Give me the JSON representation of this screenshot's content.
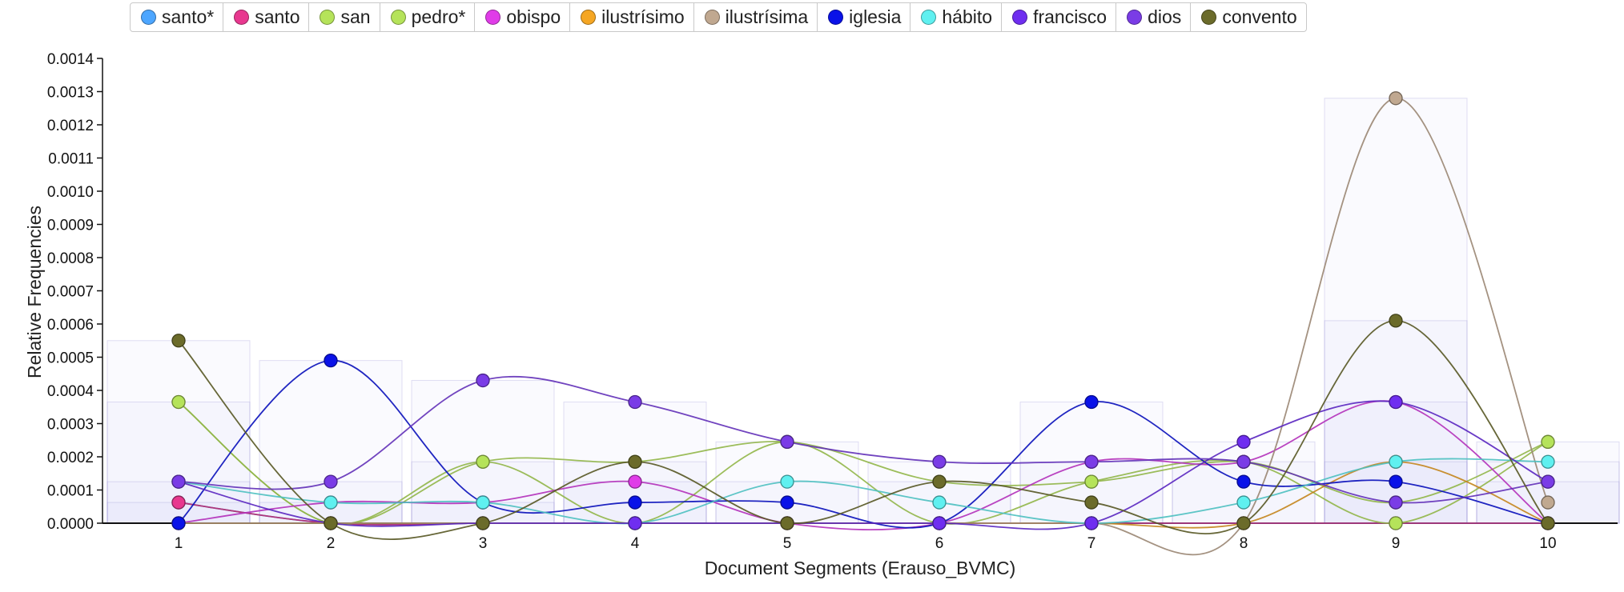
{
  "chart_data": {
    "type": "line",
    "xlabel": "Document Segments (Erauso_BVMC)",
    "ylabel": "Relative Frequencies",
    "x": [
      1,
      2,
      3,
      4,
      5,
      6,
      7,
      8,
      9,
      10
    ],
    "ylim": [
      0,
      0.0014
    ],
    "yticks": [
      "0.0000",
      "0.0001",
      "0.0002",
      "0.0003",
      "0.0004",
      "0.0005",
      "0.0006",
      "0.0007",
      "0.0008",
      "0.0009",
      "0.0010",
      "0.0011",
      "0.0012",
      "0.0013",
      "0.0014"
    ],
    "legend_position": "top",
    "grid": false,
    "series": [
      {
        "name": "santo*",
        "color": "#4da6ff",
        "values": [
          6.25e-05,
          0,
          0,
          0,
          0,
          0,
          0,
          0,
          0,
          0
        ]
      },
      {
        "name": "santo",
        "color": "#e8388f",
        "values": [
          6.25e-05,
          0,
          0,
          0,
          0,
          0,
          0,
          0,
          0,
          0
        ]
      },
      {
        "name": "san",
        "color": "#b5e35a",
        "values": [
          0.000365,
          0,
          0.000185,
          0.000185,
          0.000245,
          0.000125,
          0.000125,
          0.000185,
          6.25e-05,
          0.000245
        ]
      },
      {
        "name": "pedro*",
        "color": "#b5e35a",
        "values": [
          0.000365,
          0,
          0.000185,
          0,
          0.000245,
          0,
          0.000125,
          0.000185,
          0,
          0.000245
        ]
      },
      {
        "name": "obispo",
        "color": "#e03ce8",
        "values": [
          0,
          6.25e-05,
          6.25e-05,
          0.000125,
          0,
          0,
          0.000185,
          0.000185,
          0.000365,
          0
        ]
      },
      {
        "name": "ilustrísimo",
        "color": "#f5a623",
        "values": [
          0,
          0,
          0,
          0,
          0,
          0,
          0,
          0,
          0.000185,
          0
        ]
      },
      {
        "name": "ilustrísima",
        "color": "#c0a890",
        "values": [
          0,
          0,
          0,
          0,
          0,
          0,
          0,
          0,
          0.00128,
          6.25e-05
        ]
      },
      {
        "name": "iglesia",
        "color": "#0a12e8",
        "values": [
          0,
          0.00049,
          6.25e-05,
          6.25e-05,
          6.25e-05,
          0,
          0.000365,
          0.000125,
          0.000125,
          0
        ]
      },
      {
        "name": "hábito",
        "color": "#5ff0f0",
        "values": [
          0.000125,
          6.25e-05,
          6.25e-05,
          0,
          0.000125,
          6.25e-05,
          0,
          6.25e-05,
          0.000185,
          0.000185
        ]
      },
      {
        "name": "francisco",
        "color": "#6f2ef0",
        "values": [
          0.000125,
          0,
          0,
          0,
          0,
          0,
          0,
          0.000245,
          0.000365,
          0.000125
        ]
      },
      {
        "name": "dios",
        "color": "#7a3ce6",
        "values": [
          0.000125,
          0.000125,
          0.00043,
          0.000365,
          0.000245,
          0.000185,
          0.000185,
          0.000185,
          6.25e-05,
          0.000125
        ]
      },
      {
        "name": "convento",
        "color": "#6b6b2a",
        "values": [
          0.00055,
          0,
          0,
          0.000185,
          0,
          0.000125,
          6.25e-05,
          0,
          0.00061,
          0
        ]
      }
    ],
    "background_bars": [
      {
        "x": 1,
        "values": [
          0.00055,
          0.000365,
          0.000125,
          6.25e-05
        ]
      },
      {
        "x": 2,
        "values": [
          0.00049,
          0.000125,
          6.25e-05
        ]
      },
      {
        "x": 3,
        "values": [
          0.00043,
          0.000185,
          6.25e-05
        ]
      },
      {
        "x": 4,
        "values": [
          0.000365,
          0.000185,
          0.000125
        ]
      },
      {
        "x": 5,
        "values": [
          0.000245,
          0.000125
        ]
      },
      {
        "x": 6,
        "values": [
          0.000185,
          0.000125
        ]
      },
      {
        "x": 7,
        "values": [
          0.000365,
          0.000185
        ]
      },
      {
        "x": 8,
        "values": [
          0.000245,
          0.000185
        ]
      },
      {
        "x": 9,
        "values": [
          0.00128,
          0.00061,
          0.000365,
          0.000185
        ]
      },
      {
        "x": 10,
        "values": [
          0.000245,
          0.000185,
          0.000125
        ]
      }
    ]
  }
}
